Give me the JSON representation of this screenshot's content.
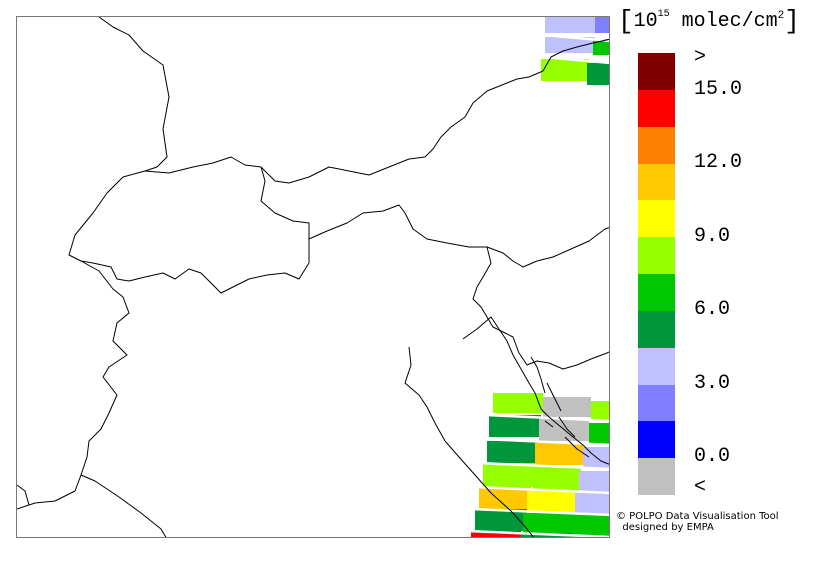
{
  "map": {
    "tiles": [
      {
        "color": "#c0c0ff"
      },
      {
        "color": "#8080ff"
      },
      {
        "color": "#c0c0ff"
      },
      {
        "color": "#00c800"
      },
      {
        "color": "#96ff00"
      },
      {
        "color": "#00963c"
      },
      {
        "color": "#96ff00"
      },
      {
        "color": "#c0c0c0"
      },
      {
        "color": "#96ff00"
      },
      {
        "color": "#00963c"
      },
      {
        "color": "#c0c0c0"
      },
      {
        "color": "#00c800"
      },
      {
        "color": "#00963c"
      },
      {
        "color": "#ffc800"
      },
      {
        "color": "#c0c0ff"
      },
      {
        "color": "#96ff00"
      },
      {
        "color": "#96ff00"
      },
      {
        "color": "#c0c0ff"
      },
      {
        "color": "#ffc800"
      },
      {
        "color": "#ffff00"
      },
      {
        "color": "#c0c0ff"
      },
      {
        "color": "#00963c"
      },
      {
        "color": "#00c800"
      },
      {
        "color": "#00c800"
      },
      {
        "color": "#ff0000"
      },
      {
        "color": "#00963c"
      },
      {
        "color": "#00963c"
      }
    ]
  },
  "legend": {
    "unit_prefix": "10",
    "unit_exponent": "15",
    "unit_mid": " molec/cm",
    "unit_square": "2",
    "colors": [
      "#800000",
      "#ff0000",
      "#ff8000",
      "#ffc800",
      "#ffff00",
      "#96ff00",
      "#00c800",
      "#00963c",
      "#c0c0ff",
      "#8080ff",
      "#0000ff",
      "#c0c0c0"
    ],
    "ticks": [
      ">",
      "15.0",
      "12.0",
      "9.0",
      "6.0",
      "3.0",
      "0.0",
      "<"
    ]
  },
  "credit": {
    "line1": "© POLPO Data Visualisation Tool",
    "line2": "designed by EMPA"
  }
}
